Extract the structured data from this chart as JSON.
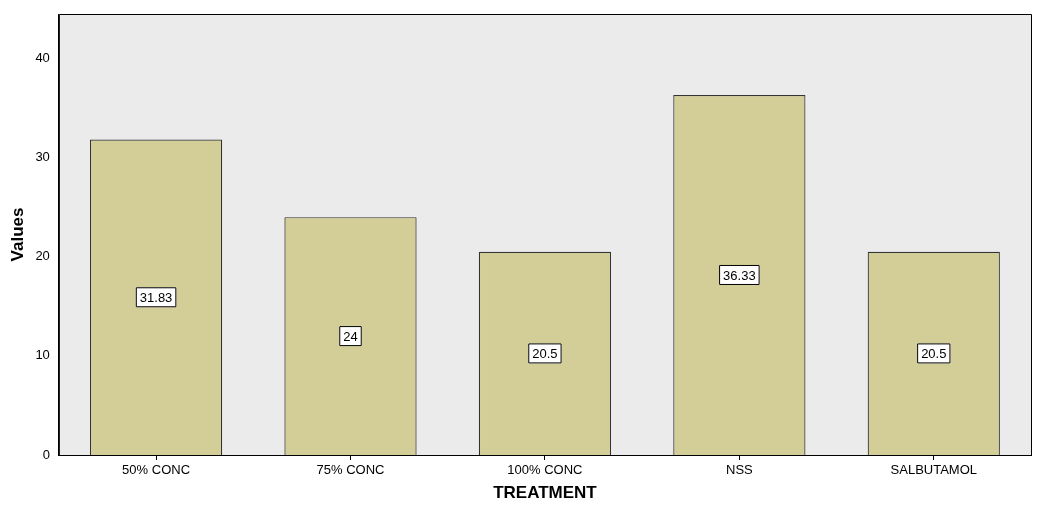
{
  "chart_data": {
    "type": "bar",
    "xlabel": "TREATMENT",
    "ylabel": "Values",
    "categories": [
      "50% CONC",
      "75% CONC",
      "100% CONC",
      "NSS",
      "SALBUTAMOL"
    ],
    "values": [
      31.83,
      24,
      20.5,
      36.33,
      20.5
    ],
    "color": "#d3ce98",
    "ylim": [
      0,
      44.5
    ],
    "yticks": [
      0,
      10,
      20,
      30,
      40
    ],
    "grid": false,
    "legend": false,
    "data_labels": true
  }
}
